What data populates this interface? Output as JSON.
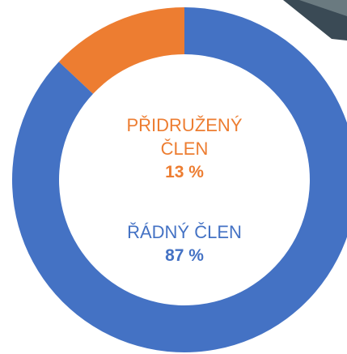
{
  "chart_data": {
    "type": "donut",
    "categories": [
      "PŘIDRUŽENÝ ČLEN",
      "ŘÁDNÝ ČLEN"
    ],
    "values": [
      13,
      87
    ],
    "value_labels": [
      "13 %",
      "87 %"
    ],
    "colors": [
      "#ed7d31",
      "#4472c4"
    ]
  }
}
